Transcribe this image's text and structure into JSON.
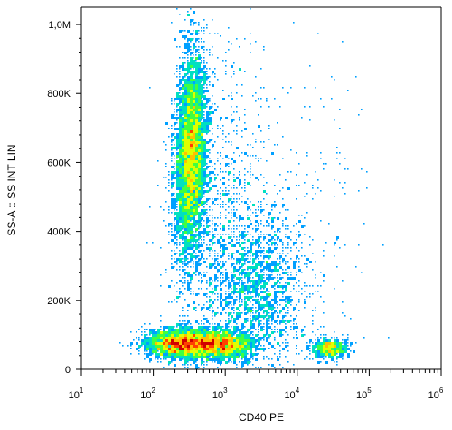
{
  "chart_data": {
    "type": "scatter",
    "subtype": "flow-cytometry-density-dot-plot",
    "xlabel": "CD40 PE",
    "ylabel": "SS-A :: SS INT LIN",
    "x_scale": "log",
    "y_scale": "linear",
    "xlim": [
      10,
      1000000
    ],
    "ylim": [
      0,
      1050000
    ],
    "x_ticks": [
      {
        "base": "10",
        "exp": "1",
        "value": 10
      },
      {
        "base": "10",
        "exp": "2",
        "value": 100
      },
      {
        "base": "10",
        "exp": "3",
        "value": 1000
      },
      {
        "base": "10",
        "exp": "4",
        "value": 10000
      },
      {
        "base": "10",
        "exp": "5",
        "value": 100000
      },
      {
        "base": "10",
        "exp": "6",
        "value": 1000000
      }
    ],
    "y_ticks": [
      {
        "label": "0",
        "value": 0
      },
      {
        "label": "200K",
        "value": 200000
      },
      {
        "label": "400K",
        "value": 400000
      },
      {
        "label": "600K",
        "value": 600000
      },
      {
        "label": "800K",
        "value": 800000
      },
      {
        "label": "1,0M",
        "value": 1000000
      }
    ],
    "grid": false,
    "colormap": [
      "#0000ff",
      "#00a0ff",
      "#00e0c0",
      "#40ff40",
      "#e0ff00",
      "#ffc000",
      "#ff4000",
      "#d00000"
    ],
    "populations": [
      {
        "center_x": 330,
        "center_y": 620000,
        "spread_log_x": 0.11,
        "spread_y": 150000,
        "tilt": 0.45,
        "count": 4200
      },
      {
        "center_x": 250,
        "center_y": 75000,
        "spread_log_x": 0.25,
        "spread_y": 22000,
        "tilt": 0.0,
        "count": 2400
      },
      {
        "center_x": 900,
        "center_y": 70000,
        "spread_log_x": 0.22,
        "spread_y": 20000,
        "tilt": 0.0,
        "count": 1500
      },
      {
        "center_x": 28000,
        "center_y": 60000,
        "spread_log_x": 0.13,
        "spread_y": 15000,
        "tilt": 0.0,
        "count": 500
      },
      {
        "center_x": 2500,
        "center_y": 230000,
        "spread_log_x": 0.35,
        "spread_y": 120000,
        "tilt": 0.0,
        "count": 1600
      },
      {
        "center_x": 900,
        "center_y": 450000,
        "spread_log_x": 0.35,
        "spread_y": 250000,
        "tilt": 0.0,
        "count": 900
      },
      {
        "center_x": 10000,
        "center_y": 400000,
        "spread_log_x": 0.5,
        "spread_y": 300000,
        "tilt": 0.0,
        "count": 250
      }
    ]
  }
}
